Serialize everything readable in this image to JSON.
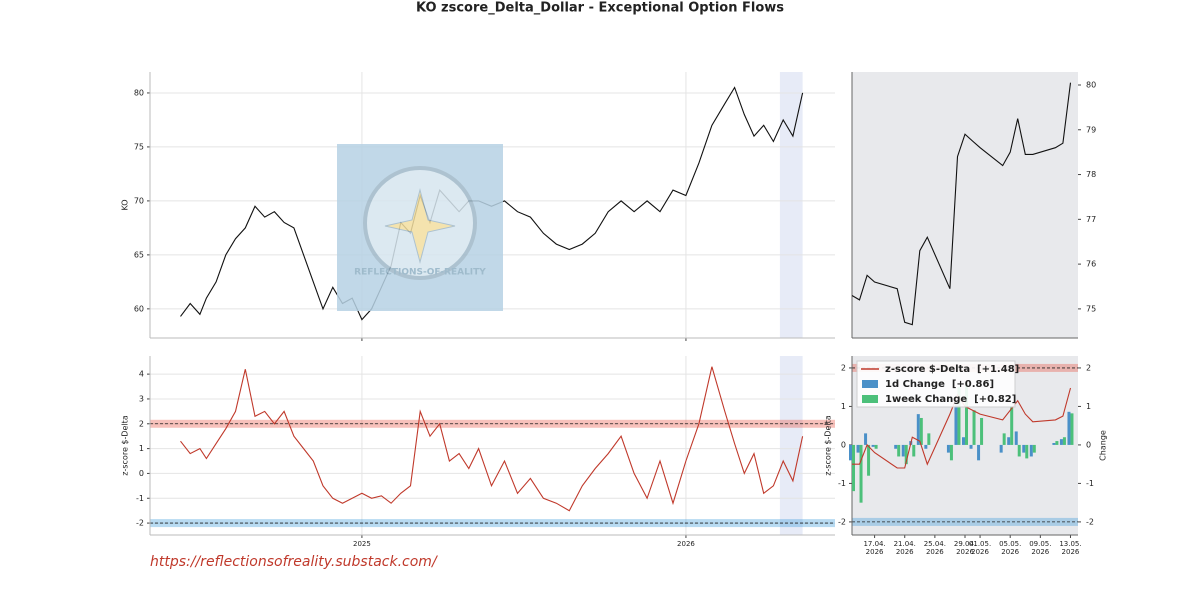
{
  "title": "KO zscore_Delta_Dollar  - Exceptional Option Flows",
  "footer": "https://reflectionsofreality.substack.com/",
  "watermark": "REFLECTIONS-OF-REALITY",
  "chart_data": [
    {
      "type": "line",
      "ylabel": "KO",
      "color": "#111111",
      "grid": true,
      "x": [
        2024.44,
        2024.47,
        2024.5,
        2024.52,
        2024.55,
        2024.58,
        2024.61,
        2024.64,
        2024.67,
        2024.7,
        2024.73,
        2024.76,
        2024.79,
        2024.82,
        2024.85,
        2024.88,
        2024.91,
        2024.94,
        2024.97,
        2025.0,
        2025.03,
        2025.06,
        2025.09,
        2025.12,
        2025.15,
        2025.18,
        2025.21,
        2025.24,
        2025.27,
        2025.3,
        2025.33,
        2025.36,
        2025.4,
        2025.44,
        2025.48,
        2025.52,
        2025.56,
        2025.6,
        2025.64,
        2025.68,
        2025.72,
        2025.76,
        2025.8,
        2025.84,
        2025.88,
        2025.92,
        2025.96,
        2026.0,
        2026.04,
        2026.08,
        2026.12,
        2026.15,
        2026.18,
        2026.21,
        2026.24,
        2026.27,
        2026.3,
        2026.33,
        2026.36
      ],
      "values": [
        59.3,
        60.5,
        59.5,
        61,
        62.5,
        65,
        66.5,
        67.5,
        69.5,
        68.5,
        69,
        68,
        67.5,
        65,
        62.5,
        60,
        62,
        60.5,
        61,
        59,
        60,
        62,
        64,
        68,
        67,
        70.5,
        68,
        71,
        70,
        69,
        70,
        70,
        69.5,
        70,
        69,
        68.5,
        67,
        66,
        65.5,
        66,
        67,
        69,
        70,
        69,
        70,
        69,
        71,
        70.5,
        73.5,
        77,
        79,
        80.5,
        78,
        76,
        77,
        75.5,
        77.5,
        76,
        80
      ],
      "xlim": [
        2024.346,
        2026.46
      ],
      "ylim": [
        57.3,
        81.94
      ],
      "yticks": [
        60,
        65,
        70,
        75,
        80
      ],
      "xticks": [
        2025,
        2026
      ],
      "highlight": [
        2026.29,
        2026.36
      ]
    },
    {
      "type": "line",
      "color": "#111111",
      "grid": false,
      "y_axis_side": "right",
      "x": [
        "2026-04-14",
        "2026-04-15",
        "2026-04-16",
        "2026-04-17",
        "2026-04-20",
        "2026-04-21",
        "2026-04-22",
        "2026-04-23",
        "2026-04-24",
        "2026-04-27",
        "2026-04-28",
        "2026-04-29",
        "2026-04-30",
        "2026-05-01",
        "2026-05-04",
        "2026-05-05",
        "2026-05-06",
        "2026-05-07",
        "2026-05-08",
        "2026-05-11",
        "2026-05-12",
        "2026-05-13"
      ],
      "values": [
        75.3,
        75.2,
        75.75,
        75.6,
        75.45,
        74.7,
        74.65,
        76.3,
        76.6,
        75.45,
        78.4,
        78.9,
        78.75,
        78.6,
        78.2,
        78.5,
        79.25,
        78.45,
        78.45,
        78.6,
        78.7,
        80.05
      ],
      "xlim": [
        "2026-04-14",
        "2026-05-14"
      ],
      "ylim": [
        74.35,
        80.29
      ],
      "yticks": [
        75,
        76,
        77,
        78,
        79,
        80
      ]
    },
    {
      "type": "line",
      "ylabel": "z-score $-Delta",
      "color": "#c0392b",
      "grid": true,
      "x": [
        2024.44,
        2024.47,
        2024.5,
        2024.52,
        2024.55,
        2024.58,
        2024.61,
        2024.64,
        2024.67,
        2024.7,
        2024.73,
        2024.76,
        2024.79,
        2024.82,
        2024.85,
        2024.88,
        2024.91,
        2024.94,
        2024.97,
        2025.0,
        2025.03,
        2025.06,
        2025.09,
        2025.12,
        2025.15,
        2025.18,
        2025.21,
        2025.24,
        2025.27,
        2025.3,
        2025.33,
        2025.36,
        2025.4,
        2025.44,
        2025.48,
        2025.52,
        2025.56,
        2025.6,
        2025.64,
        2025.68,
        2025.72,
        2025.76,
        2025.8,
        2025.84,
        2025.88,
        2025.92,
        2025.96,
        2026.0,
        2026.04,
        2026.08,
        2026.12,
        2026.15,
        2026.18,
        2026.21,
        2026.24,
        2026.27,
        2026.3,
        2026.33,
        2026.36
      ],
      "values": [
        1.3,
        0.8,
        1.0,
        0.6,
        1.2,
        1.8,
        2.5,
        4.2,
        2.3,
        2.5,
        2.0,
        2.5,
        1.5,
        1.0,
        0.5,
        -0.5,
        -1.0,
        -1.2,
        -1.0,
        -0.8,
        -1.0,
        -0.9,
        -1.2,
        -0.8,
        -0.5,
        2.5,
        1.5,
        2.0,
        0.5,
        0.8,
        0.2,
        1.0,
        -0.5,
        0.5,
        -0.8,
        -0.2,
        -1.0,
        -1.2,
        -1.5,
        -0.5,
        0.2,
        0.8,
        1.5,
        0.0,
        -1.0,
        0.5,
        -1.2,
        0.5,
        2.0,
        4.3,
        2.5,
        1.2,
        0.0,
        0.8,
        -0.8,
        -0.5,
        0.5,
        -0.3,
        1.5
      ],
      "xlim": [
        2024.346,
        2026.46
      ],
      "ylim": [
        -2.48,
        4.73
      ],
      "yticks": [
        -2,
        -1,
        0,
        1,
        2,
        3,
        4
      ],
      "xticks": [
        2025,
        2026
      ],
      "highlight": [
        2026.29,
        2026.36
      ],
      "thresholds": [
        {
          "value": 2,
          "color": "#e74c3c"
        },
        {
          "value": -2,
          "color": "#3498db"
        }
      ]
    },
    {
      "type": "combo",
      "ylabel": "z-score $-Delta",
      "y2label": "Change",
      "legend": "upper left",
      "grid": false,
      "x": [
        "2026-04-14",
        "2026-04-15",
        "2026-04-16",
        "2026-04-17",
        "2026-04-20",
        "2026-04-21",
        "2026-04-22",
        "2026-04-23",
        "2026-04-24",
        "2026-04-27",
        "2026-04-28",
        "2026-04-29",
        "2026-04-30",
        "2026-05-01",
        "2026-05-04",
        "2026-05-05",
        "2026-05-06",
        "2026-05-07",
        "2026-05-08",
        "2026-05-11",
        "2026-05-12",
        "2026-05-13"
      ],
      "series": [
        {
          "name": "z-score $-Delta  [+1.48]",
          "type": "line",
          "color": "#c0392b",
          "values": [
            -0.5,
            -0.5,
            0.0,
            -0.2,
            -0.6,
            -0.6,
            0.2,
            0.1,
            -0.5,
            0.8,
            1.3,
            1.0,
            0.9,
            0.8,
            0.65,
            0.9,
            1.15,
            0.8,
            0.6,
            0.65,
            0.75,
            1.48
          ]
        },
        {
          "name": "1d Change  [+0.86]",
          "type": "bar",
          "axis": "y2",
          "color": "#4a90c8",
          "values": [
            -0.4,
            -0.2,
            0.3,
            -0.05,
            -0.1,
            -0.3,
            0.1,
            0.8,
            -0.1,
            -0.2,
            1.1,
            0.2,
            -0.1,
            -0.4,
            -0.2,
            0.2,
            0.35,
            -0.2,
            -0.3,
            0.05,
            0.15,
            0.86
          ]
        },
        {
          "name": "1week Change  [+0.82]",
          "type": "bar",
          "axis": "y2",
          "color": "#4cc07a",
          "values": [
            -1.2,
            -1.5,
            -0.8,
            -0.1,
            -0.3,
            -0.5,
            -0.3,
            0.7,
            0.3,
            -0.4,
            1.5,
            1.6,
            0.9,
            0.7,
            0.3,
            1.0,
            -0.3,
            -0.35,
            -0.2,
            0.1,
            0.2,
            0.82
          ]
        }
      ],
      "xlim": [
        "2026-04-14",
        "2026-05-14"
      ],
      "ylim": [
        -2.34,
        2.31
      ],
      "yticks": [
        -2,
        -1,
        0,
        1,
        2
      ],
      "y2lim": [
        -2.34,
        2.31
      ],
      "y2ticks": [
        -2,
        -1,
        0,
        1,
        2
      ],
      "xticks": [
        {
          "value": "2026-04-17",
          "label": "17.04.\n2026"
        },
        {
          "value": "2026-04-21",
          "label": "21.04.\n2026"
        },
        {
          "value": "2026-04-25",
          "label": "25.04.\n2026"
        },
        {
          "value": "2026-04-29",
          "label": "29.04.\n2026"
        },
        {
          "value": "2026-05-01",
          "label": "01.05.\n2026"
        },
        {
          "value": "2026-05-05",
          "label": "05.05.\n2026"
        },
        {
          "value": "2026-05-09",
          "label": "09.05.\n2026"
        },
        {
          "value": "2026-05-13",
          "label": "13.05.\n2026"
        }
      ],
      "thresholds": [
        {
          "value": 2,
          "color": "#e74c3c"
        },
        {
          "value": -2,
          "color": "#3498db"
        }
      ]
    }
  ]
}
